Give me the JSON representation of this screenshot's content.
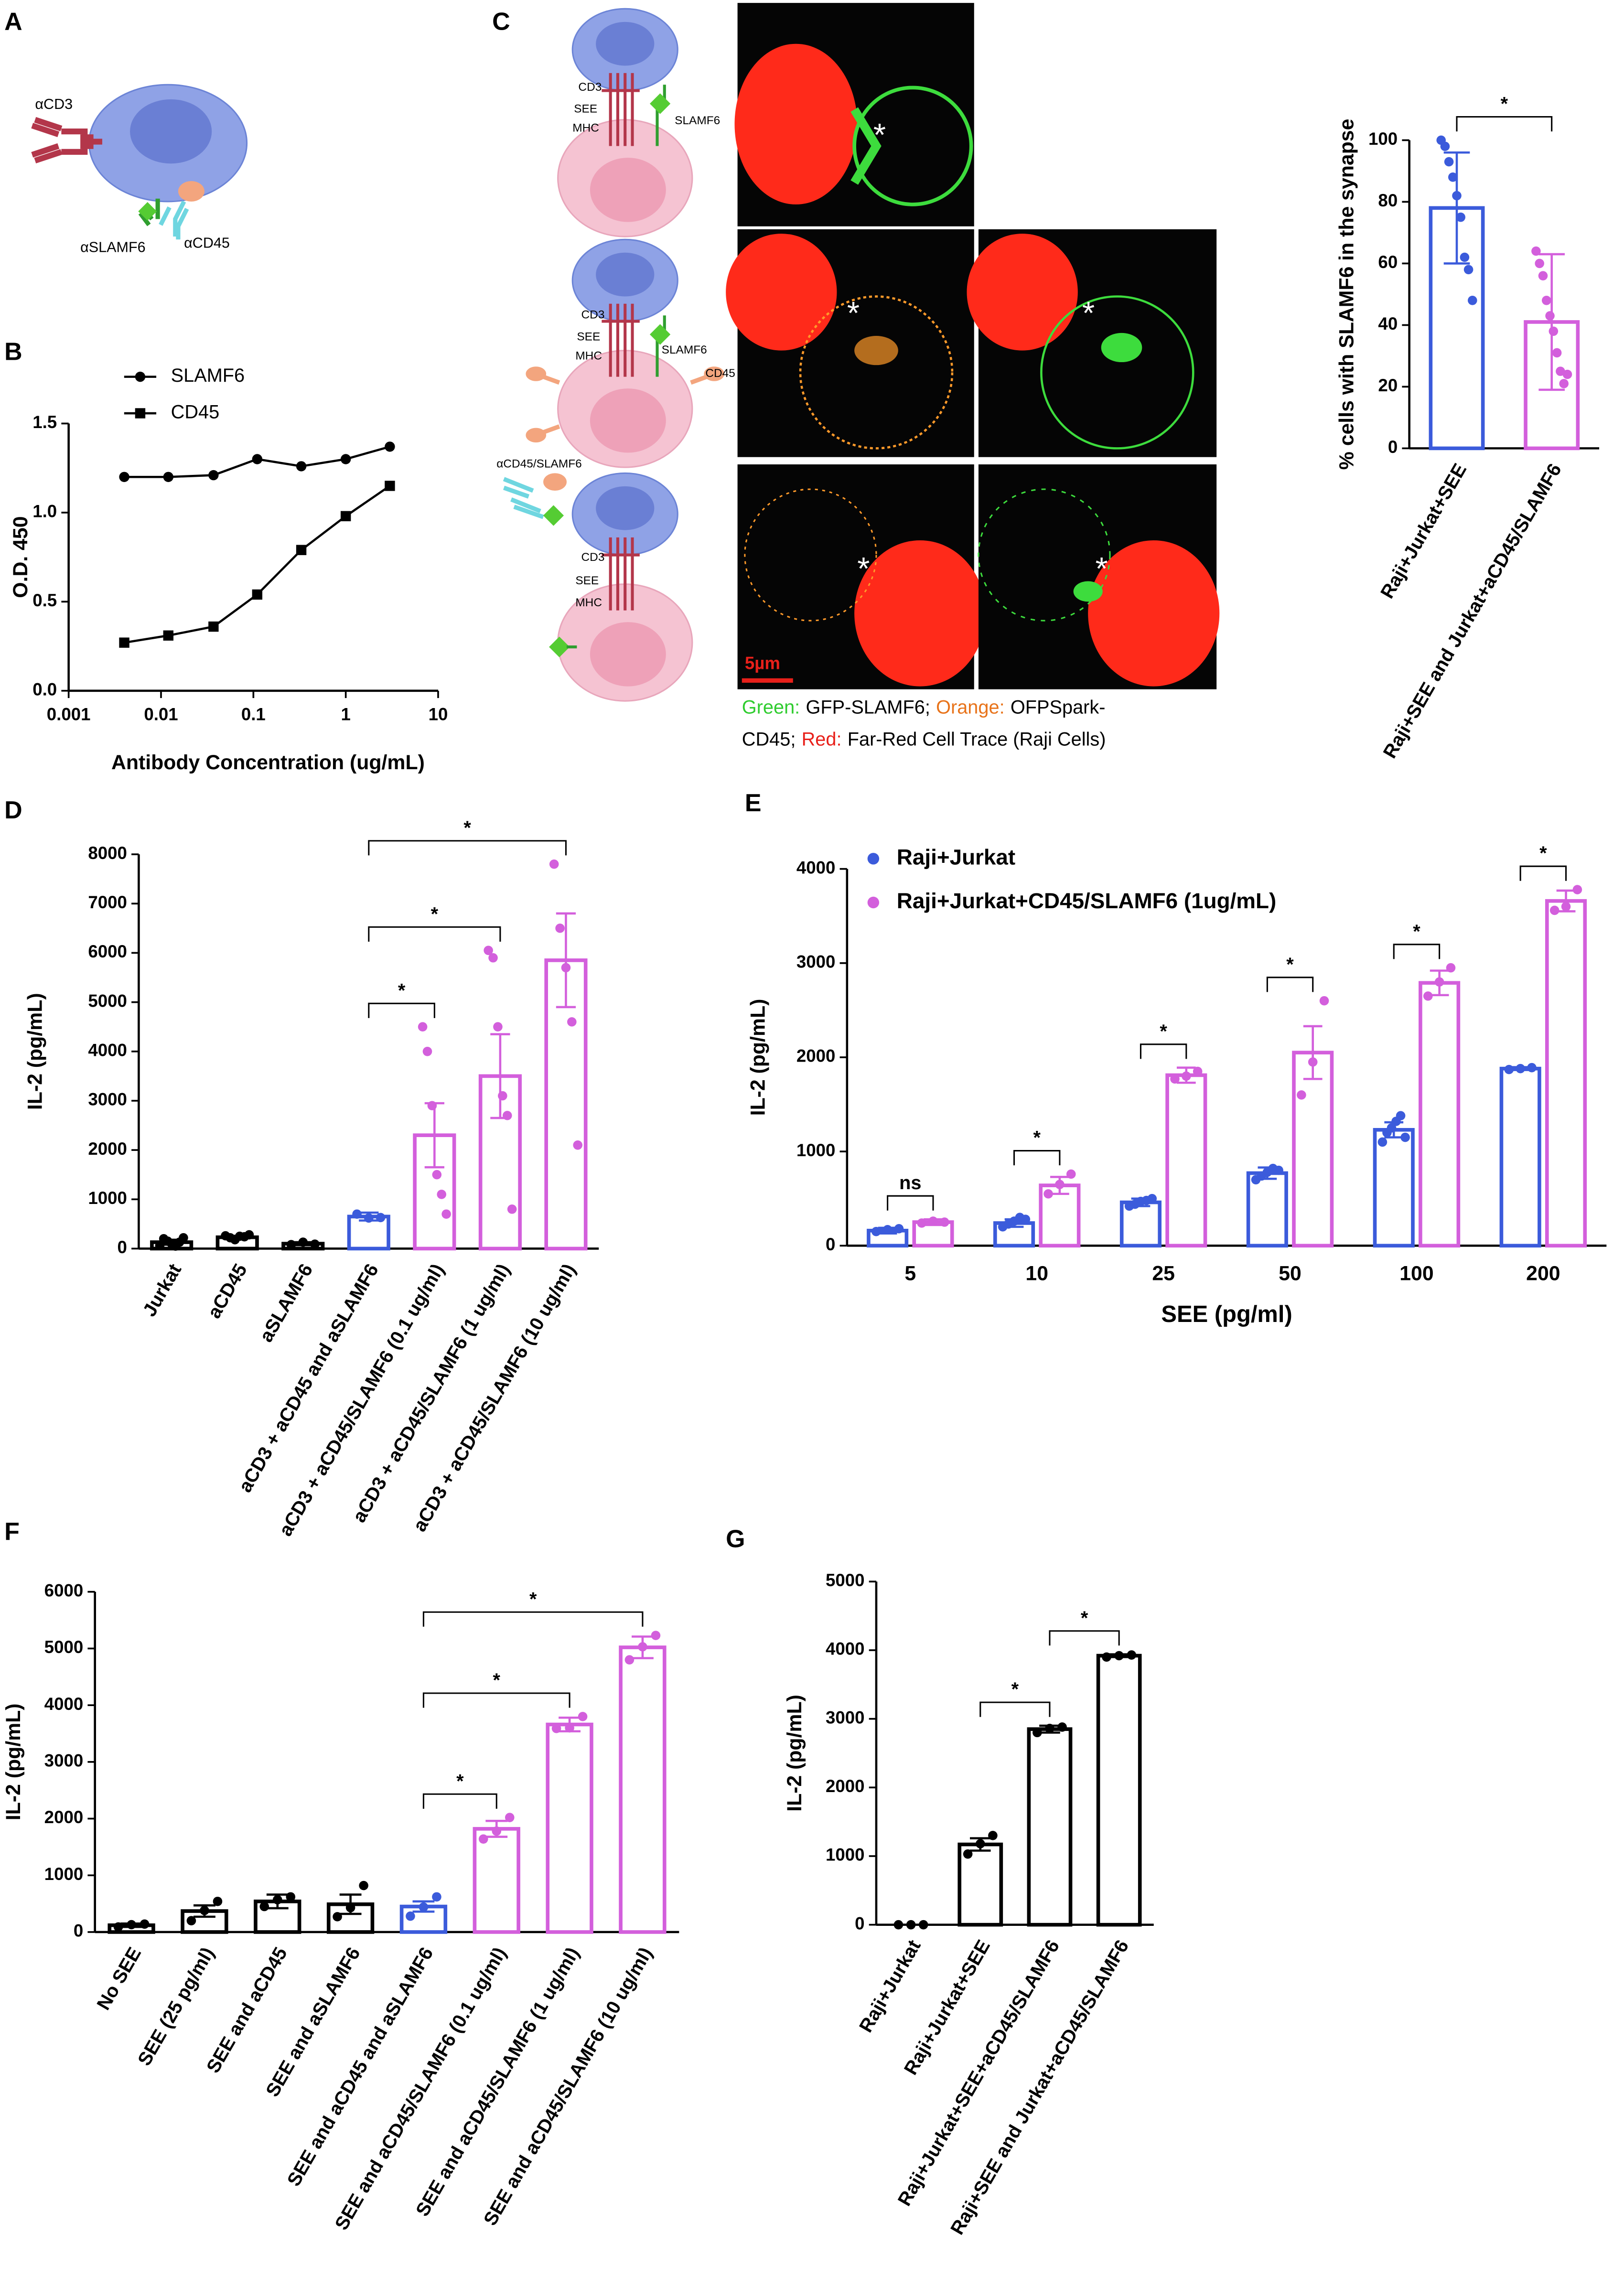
{
  "panel_labels": [
    "A",
    "B",
    "C",
    "D",
    "E",
    "F",
    "G"
  ],
  "diagram_a": [
    "αCD3",
    "αSLAMF6",
    "αCD45"
  ],
  "diagram_c": {
    "top": [
      "CD3",
      "SEE",
      "MHC",
      "SLAMF6"
    ],
    "middle": [
      "CD3",
      "SEE",
      "MHC",
      "SLAMF6",
      "CD45"
    ],
    "bottom": [
      "αCD45/SLAMF6",
      "CD3",
      "SEE",
      "MHC"
    ]
  },
  "micrograph": {
    "markers": [
      "*",
      "*",
      "*",
      "*",
      "*"
    ],
    "scale_bar": "5µm",
    "caption": [
      [
        {
          "text": "Green:",
          "color": "#2ecc2e"
        },
        {
          "text": "GFP-SLAMF6;",
          "color": "#000000"
        },
        {
          "text": "Orange:",
          "color": "#e8731a"
        },
        {
          "text": "OFPSpark-",
          "color": "#000000"
        }
      ],
      [
        {
          "text": "CD45;",
          "color": "#000000"
        },
        {
          "text": "Red:",
          "color": "#e8201a"
        },
        {
          "text": "Far-Red Cell Trace (Raji Cells)",
          "color": "#000000"
        }
      ]
    ]
  },
  "chart_data": [
    {
      "type": "line",
      "xscale": "log",
      "x": [
        0.004,
        0.012,
        0.037,
        0.11,
        0.33,
        1,
        3
      ],
      "series": [
        {
          "name": "SLAMF6",
          "color": "#000000",
          "marker": "circle",
          "values": [
            1.2,
            1.2,
            1.21,
            1.3,
            1.26,
            1.3,
            1.37
          ]
        },
        {
          "name": "CD45",
          "color": "#000000",
          "marker": "square",
          "values": [
            0.27,
            0.31,
            0.36,
            0.54,
            0.79,
            0.98,
            1.15
          ]
        }
      ],
      "xlim": [
        0.001,
        10
      ],
      "xticks": [
        0.001,
        0.01,
        0.1,
        1,
        10
      ],
      "ylim": [
        0,
        1.5
      ],
      "yticks": [
        {
          "value": 0,
          "label": "0.0"
        },
        0.5,
        {
          "value": 1,
          "label": "1.0"
        },
        1.5
      ],
      "xlabel": "Antibody Concentration (ug/mL)",
      "ylabel": "O.D. 450",
      "legend": "top-left"
    },
    {
      "type": "bar",
      "categories": [
        "Raji+Jurkat+SEE",
        "Raji+SEE and Jurkat+aCD45/SLAMF6"
      ],
      "values": [
        78,
        41
      ],
      "errors": [
        18,
        22
      ],
      "colors": [
        "#3b5bdb",
        "#d35fdc"
      ],
      "points": [
        [
          100,
          98,
          93,
          88,
          82,
          75,
          62,
          58,
          48
        ],
        [
          64,
          60,
          56,
          48,
          43,
          38,
          31,
          25,
          21,
          24
        ]
      ],
      "significance": [
        null,
        "*"
      ],
      "ylim": [
        0,
        100
      ],
      "yticks": [
        0,
        20,
        40,
        60,
        80,
        100
      ],
      "ylabel": "% cells with SLAMF6 in the synapse"
    },
    {
      "type": "bar",
      "categories": [
        "Jurkat",
        "aCD45",
        "aSLAMF6",
        "aCD3 + aCD45 and aSLAMF6",
        "aCD3 + aCD45/SLAMF6 (0.1 ug/ml)",
        "aCD3 + aCD45/SLAMF6 (1 ug/ml)",
        "aCD3 + aCD45/SLAMF6 (10 ug/ml)"
      ],
      "values": [
        130,
        230,
        100,
        650,
        2300,
        3500,
        5850
      ],
      "errors": [
        50,
        30,
        30,
        80,
        650,
        850,
        950
      ],
      "colors": [
        "#000000",
        "#000000",
        "#000000",
        "#3b5bdb",
        "#d35fdc",
        "#d35fdc",
        "#d35fdc"
      ],
      "points": [
        [
          60,
          200,
          150,
          100,
          50,
          130,
          220
        ],
        [
          260,
          220,
          180,
          250,
          240,
          280
        ],
        [
          80,
          130,
          90
        ],
        [
          700,
          620,
          630
        ],
        [
          4500,
          4000,
          2900,
          1500,
          1100,
          700
        ],
        [
          6050,
          5900,
          4500,
          3100,
          2700,
          800
        ],
        [
          7800,
          6500,
          5700,
          4600,
          2100
        ]
      ],
      "significance": [
        null,
        null,
        null,
        null,
        "*",
        "*",
        "*"
      ],
      "ylim": [
        0,
        8000
      ],
      "yticks": [
        0,
        1000,
        2000,
        3000,
        4000,
        5000,
        6000,
        7000,
        8000
      ],
      "ylabel": "IL-2 (pg/mL)"
    },
    {
      "type": "grouped_bar",
      "categories": [
        "5",
        "10",
        "25",
        "50",
        "100",
        "200"
      ],
      "series": [
        {
          "name": "Raji+Jurkat",
          "color": "#3b5bdb",
          "values": [
            160,
            240,
            460,
            770,
            1230,
            1880
          ],
          "errors": [
            30,
            40,
            40,
            60,
            80,
            15
          ],
          "points": [
            [
              150,
              170,
              180
            ],
            [
              200,
              230,
              260,
              300,
              280
            ],
            [
              420,
              440,
              470,
              480,
              500
            ],
            [
              700,
              740,
              780,
              820,
              800
            ],
            [
              1100,
              1200,
              1250,
              1320,
              1380,
              1150
            ],
            [
              1870,
              1880,
              1890
            ]
          ]
        },
        {
          "name": "Raji+Jurkat+CD45/SLAMF6 (1ug/mL)",
          "color": "#d35fdc",
          "values": [
            250,
            640,
            1810,
            2050,
            2790,
            3660
          ],
          "errors": [
            30,
            90,
            80,
            280,
            130,
            110
          ],
          "points": [
            [
              240,
              260,
              250
            ],
            [
              550,
              650,
              760
            ],
            [
              1770,
              1800,
              1850
            ],
            [
              1600,
              1950,
              2600
            ],
            [
              2650,
              2800,
              2950
            ],
            [
              3560,
              3600,
              3780
            ]
          ]
        }
      ],
      "significance": [
        "ns",
        "*",
        "*",
        "*",
        "*",
        "*"
      ],
      "ylim": [
        0,
        4000
      ],
      "yticks": [
        0,
        1000,
        2000,
        3000,
        4000
      ],
      "xlabel": "SEE (pg/ml)",
      "ylabel": "IL-2 (pg/mL)",
      "legend": "top-left"
    },
    {
      "type": "bar",
      "categories": [
        "No SEE",
        "SEE (25 pg/ml)",
        "SEE and aCD45",
        "SEE and aSLAMF6",
        "SEE and aCD45 and aSLAMF6",
        "SEE and aCD45/SLAMF6 (0.1 ug/ml)",
        "SEE and aCD45/SLAMF6 (1 ug/ml)",
        "SEE and aCD45/SLAMF6 (10 ug/ml)"
      ],
      "values": [
        120,
        370,
        540,
        490,
        450,
        1820,
        3660,
        5020
      ],
      "errors": [
        30,
        100,
        120,
        170,
        90,
        140,
        120,
        190
      ],
      "colors": [
        "#000000",
        "#000000",
        "#000000",
        "#000000",
        "#3b5bdb",
        "#d35fdc",
        "#d35fdc",
        "#d35fdc"
      ],
      "points": [
        [
          90,
          130,
          140
        ],
        [
          200,
          380,
          540
        ],
        [
          450,
          570,
          620
        ],
        [
          270,
          430,
          820
        ],
        [
          280,
          440,
          620
        ],
        [
          1640,
          1780,
          2020
        ],
        [
          3590,
          3600,
          3800
        ],
        [
          4800,
          5030,
          5230
        ]
      ],
      "significance": [
        null,
        null,
        null,
        null,
        null,
        "*",
        "*",
        "*"
      ],
      "ylim": [
        0,
        6000
      ],
      "yticks": [
        0,
        1000,
        2000,
        3000,
        4000,
        5000,
        6000
      ],
      "ylabel": "IL-2 (pg/mL)"
    },
    {
      "type": "bar",
      "categories": [
        "Raji+Jurkat",
        "Raji+Jurkat+SEE",
        "Raji+Jurkat+SEE+aCD45/SLAMF6",
        "Raji+SEE and Jurkat+aCD45/SLAMF6"
      ],
      "values": [
        0,
        1170,
        2850,
        3920
      ],
      "errors": [
        0,
        90,
        50,
        20
      ],
      "colors": [
        "#000000",
        "#000000",
        "#000000",
        "#000000"
      ],
      "points": [
        [
          0,
          0,
          0
        ],
        [
          1030,
          1180,
          1300
        ],
        [
          2800,
          2860,
          2880
        ],
        [
          3900,
          3920,
          3930
        ]
      ],
      "significance": [
        null,
        null,
        "*",
        "*"
      ],
      "ylim": [
        0,
        5000
      ],
      "yticks": [
        0,
        1000,
        2000,
        3000,
        4000,
        5000
      ],
      "ylabel": "IL-2 (pg/mL)"
    }
  ]
}
